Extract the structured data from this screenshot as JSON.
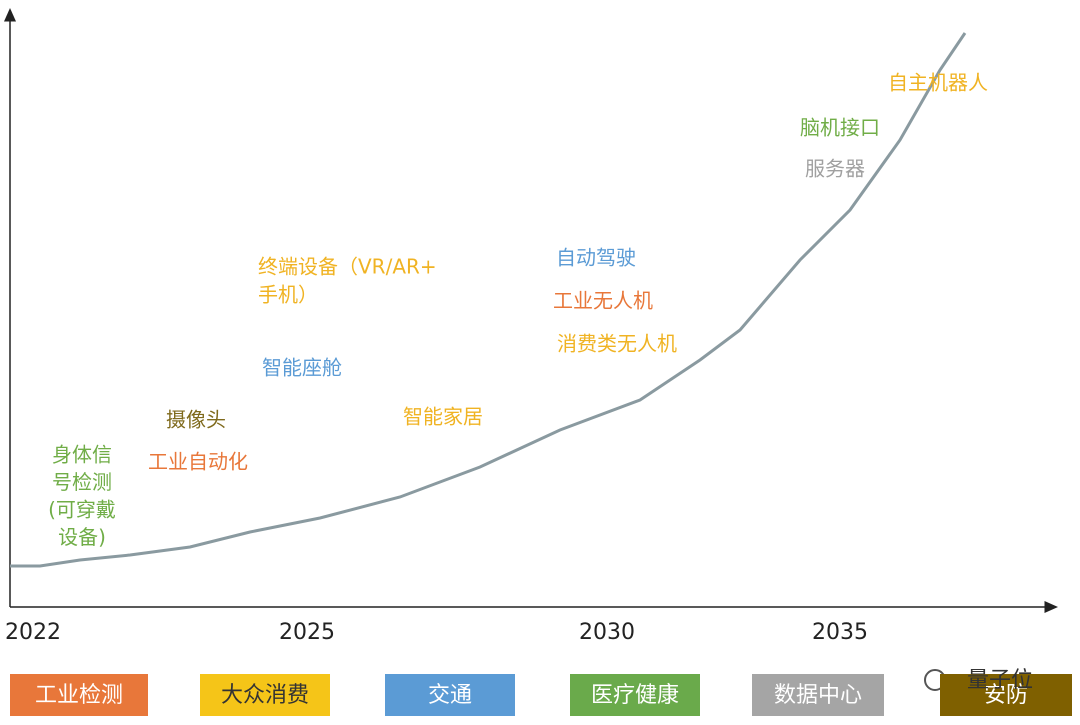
{
  "x_axis": {
    "ticks": [
      "2022",
      "2025",
      "2030",
      "2035"
    ]
  },
  "labels": [
    {
      "lines": [
        "身体信",
        "号检测",
        "(可穿戴",
        "设备)"
      ],
      "color": "#70ad47"
    },
    {
      "lines": [
        "工业自动化"
      ],
      "color": "#e8773a"
    },
    {
      "lines": [
        "摄像头"
      ],
      "color": "#7f6a1c"
    },
    {
      "lines": [
        "终端设备（VR/AR+",
        "手机）"
      ],
      "color": "#f0b323"
    },
    {
      "lines": [
        "智能座舱"
      ],
      "color": "#5b9bd5"
    },
    {
      "lines": [
        "智能家居"
      ],
      "color": "#f0b323"
    },
    {
      "lines": [
        "自动驾驶"
      ],
      "color": "#5b9bd5"
    },
    {
      "lines": [
        "工业无人机"
      ],
      "color": "#e8773a"
    },
    {
      "lines": [
        "消费类无人机"
      ],
      "color": "#f0b323"
    },
    {
      "lines": [
        "服务器"
      ],
      "color": "#a0a0a0"
    },
    {
      "lines": [
        "脑机接口"
      ],
      "color": "#70ad47"
    },
    {
      "lines": [
        "自主机器人"
      ],
      "color": "#f0b323"
    }
  ],
  "legend": [
    {
      "text": "工业检测",
      "color": "#e8773a"
    },
    {
      "text": "大众消费",
      "color": "#f5c518"
    },
    {
      "text": "交通",
      "color": "#5b9bd5"
    },
    {
      "text": "医疗健康",
      "color": "#6aaa4b"
    },
    {
      "text": "数据中心",
      "color": "#a5a5a5"
    },
    {
      "text": "安防",
      "color": "#7f6000"
    }
  ],
  "watermark": "量子位"
}
